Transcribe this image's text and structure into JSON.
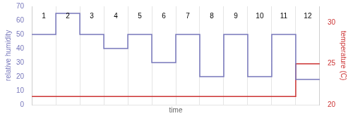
{
  "chart_data": {
    "type": "line",
    "xlabel": "time",
    "ylabel": "relative humidity",
    "y2label": "temperature (C)",
    "xlim": [
      0,
      12
    ],
    "xticks": [
      0,
      1,
      2,
      3,
      4,
      5,
      6,
      7,
      8,
      9,
      10,
      11,
      12
    ],
    "ylim": [
      0,
      70
    ],
    "yticks": [
      0,
      10,
      20,
      30,
      40,
      50,
      60,
      70
    ],
    "y2lim": [
      20,
      32
    ],
    "y2ticks": [
      20,
      25,
      30
    ],
    "grid": "x",
    "tick_labels": "y",
    "series": [
      {
        "color": "#7777bb",
        "x": [
          0,
          1,
          1,
          2,
          2,
          3,
          3,
          4,
          4,
          5,
          5,
          6,
          6,
          7,
          7,
          8,
          8,
          9,
          9,
          10,
          10,
          11,
          11,
          12,
          12
        ],
        "values": [
          50,
          50,
          65,
          65,
          50,
          50,
          40,
          40,
          50,
          50,
          30,
          30,
          50,
          50,
          20,
          20,
          50,
          50,
          20,
          20,
          50,
          50,
          18,
          18,
          18
        ]
      },
      {
        "color": "#cc3333",
        "axis": "y2",
        "x": [
          0,
          11,
          11,
          12
        ],
        "values": [
          21,
          21,
          25,
          25
        ]
      }
    ],
    "annotations": [
      {
        "x": 0.5,
        "y": 63,
        "text": "1"
      },
      {
        "x": 1.5,
        "y": 63,
        "text": "2"
      },
      {
        "x": 2.5,
        "y": 63,
        "text": "3"
      },
      {
        "x": 3.5,
        "y": 63,
        "text": "4"
      },
      {
        "x": 4.5,
        "y": 63,
        "text": "5"
      },
      {
        "x": 5.5,
        "y": 63,
        "text": "6"
      },
      {
        "x": 6.5,
        "y": 63,
        "text": "7"
      },
      {
        "x": 7.5,
        "y": 63,
        "text": "8"
      },
      {
        "x": 8.5,
        "y": 63,
        "text": "9"
      },
      {
        "x": 9.5,
        "y": 63,
        "text": "10"
      },
      {
        "x": 10.5,
        "y": 63,
        "text": "11"
      },
      {
        "x": 11.5,
        "y": 63,
        "text": "12"
      }
    ]
  }
}
